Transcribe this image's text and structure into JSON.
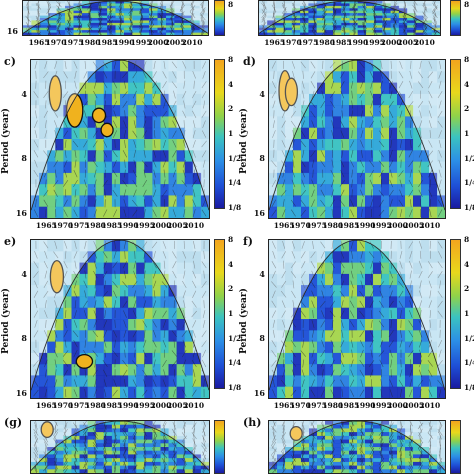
{
  "chart_data": {
    "type": "heatmap",
    "description_kind": "wavelet coherence panels",
    "xlabel_ticks": [
      "1965",
      "1970",
      "1975",
      "1980",
      "1985",
      "1990",
      "1995",
      "2000",
      "2005",
      "2010"
    ],
    "ylabel": "Period (year)",
    "ytick_labels": [
      "4",
      "8",
      "16"
    ],
    "colorbar_ticks": [
      "8",
      "4",
      "2",
      "1",
      "1/2",
      "1/4",
      "1/8"
    ],
    "panels": [
      {
        "label": "c)",
        "has_ylabel": true,
        "high_regions": [
          [
            1966,
            3.2,
            1969,
            4.5
          ],
          [
            1971,
            4.0,
            1976,
            5.5
          ],
          [
            1979,
            4.8,
            1983,
            5.2
          ],
          [
            1982,
            5.8,
            1985,
            6.2
          ]
        ]
      },
      {
        "label": "d)",
        "has_ylabel": true,
        "high_regions": [
          [
            1964,
            3.0,
            1966,
            4.5
          ],
          [
            1966,
            3.3,
            1968,
            4.2
          ]
        ]
      },
      {
        "label": "e)",
        "has_ylabel": true,
        "high_regions": [
          [
            1966,
            3.4,
            1970,
            4.6
          ],
          [
            1974,
            11.0,
            1979,
            11.8
          ]
        ]
      },
      {
        "label": "f)",
        "has_ylabel": true,
        "high_regions": []
      },
      {
        "label": "(g)",
        "has_ylabel": false,
        "high_regions": [
          [
            1964,
            3.0,
            1966,
            4.0
          ]
        ]
      },
      {
        "label": "(h)",
        "has_ylabel": false,
        "high_regions": [
          [
            1967,
            3.6,
            1970,
            4.5
          ]
        ]
      }
    ],
    "top_partial_panels": {
      "xtick_labels": [
        "1965",
        "1970",
        "1975",
        "1980",
        "1985",
        "1990",
        "1995",
        "2000",
        "2005",
        "2010"
      ],
      "ytick_label": "16",
      "colorbar_ticks": [
        "1/4",
        "1/8"
      ]
    }
  }
}
